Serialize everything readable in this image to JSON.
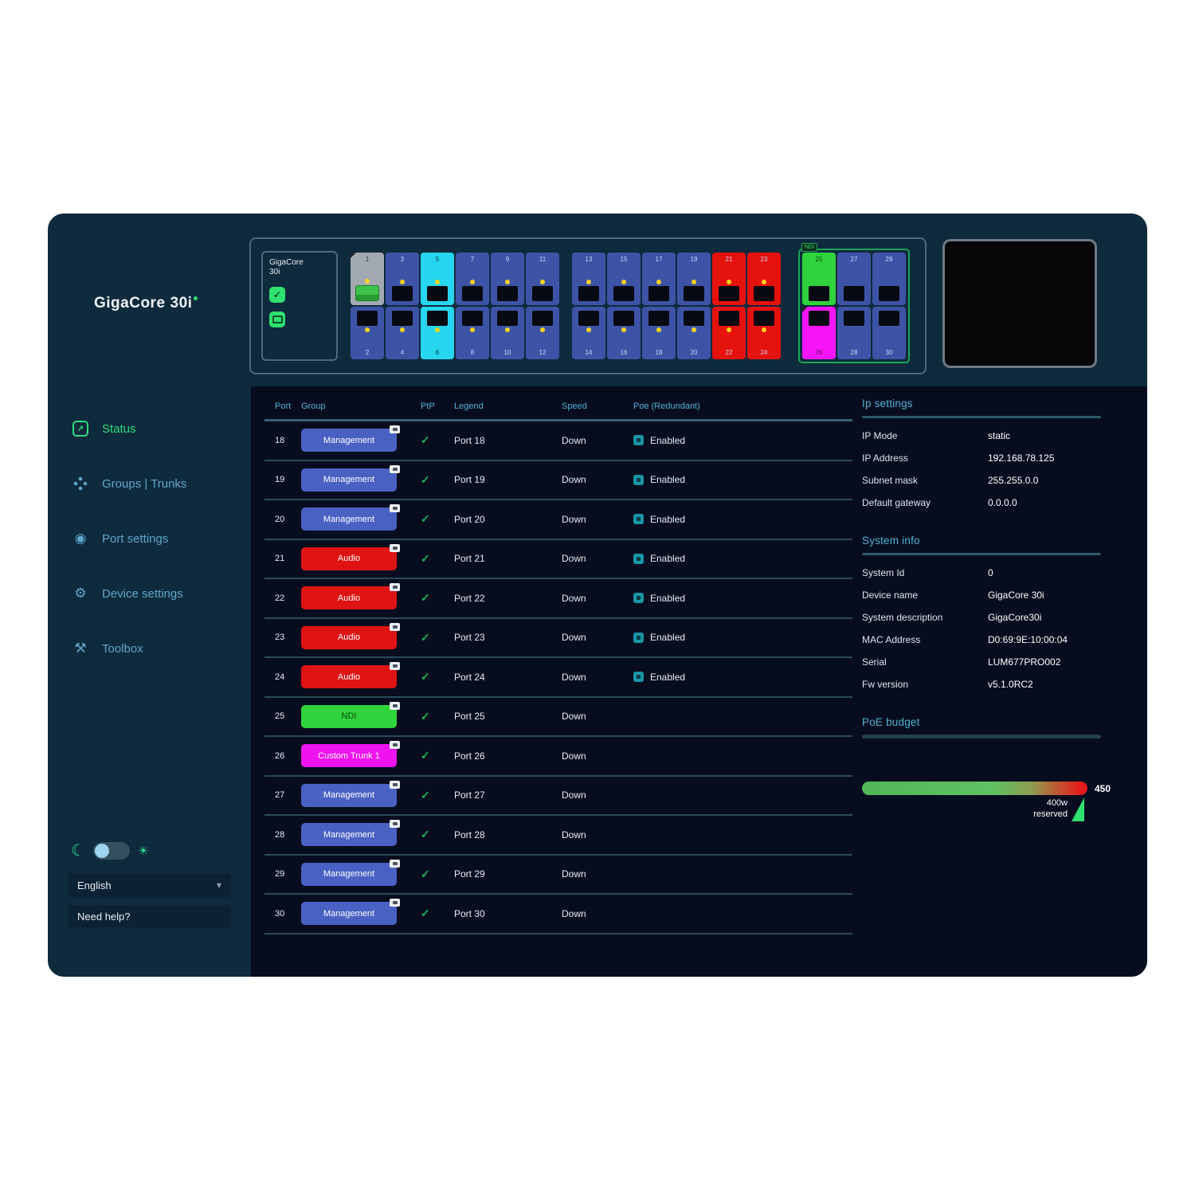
{
  "window": {
    "logo_primary": "GigaCore",
    "logo_secondary": "30i"
  },
  "icons": {
    "check": "✓",
    "moon": "☾",
    "sun": "☀",
    "chevron_down": "▾",
    "status_arrow": "↗",
    "port_settings": "◉",
    "device_settings": "⚙",
    "toolbox": "⚒"
  },
  "device_panel": {
    "info_box": {
      "line1": "GigaCore",
      "line2": "30i"
    },
    "groups": [
      {
        "name": "ports-1-12",
        "outlined": false,
        "tag": "",
        "columns": 6,
        "ports": [
          {
            "n": "1",
            "color": "gray",
            "row": "top",
            "led": true,
            "connector": true,
            "selected": true
          },
          {
            "n": "3",
            "color": "blue",
            "row": "top",
            "led": true
          },
          {
            "n": "5",
            "color": "cyan",
            "row": "top",
            "led": true
          },
          {
            "n": "7",
            "color": "blue",
            "row": "top",
            "led": true
          },
          {
            "n": "9",
            "color": "blue",
            "row": "top",
            "led": true
          },
          {
            "n": "11",
            "color": "blue",
            "row": "top",
            "led": true
          },
          {
            "n": "2",
            "color": "blue",
            "row": "bottom",
            "led": true
          },
          {
            "n": "4",
            "color": "blue",
            "row": "bottom",
            "led": true
          },
          {
            "n": "6",
            "color": "cyan",
            "row": "bottom",
            "led": true
          },
          {
            "n": "8",
            "color": "blue",
            "row": "bottom",
            "led": true
          },
          {
            "n": "10",
            "color": "blue",
            "row": "bottom",
            "led": true
          },
          {
            "n": "12",
            "color": "blue",
            "row": "bottom",
            "led": true
          }
        ]
      },
      {
        "name": "ports-13-24",
        "outlined": false,
        "tag": "",
        "columns": 6,
        "ports": [
          {
            "n": "13",
            "color": "blue",
            "row": "top",
            "led": true
          },
          {
            "n": "15",
            "color": "blue",
            "row": "top",
            "led": true
          },
          {
            "n": "17",
            "color": "blue",
            "row": "top",
            "led": true
          },
          {
            "n": "19",
            "color": "blue",
            "row": "top",
            "led": true
          },
          {
            "n": "21",
            "color": "red",
            "row": "top",
            "led": true
          },
          {
            "n": "23",
            "color": "red",
            "row": "top",
            "led": true
          },
          {
            "n": "14",
            "color": "blue",
            "row": "bottom",
            "led": true
          },
          {
            "n": "16",
            "color": "blue",
            "row": "bottom",
            "led": true
          },
          {
            "n": "18",
            "color": "blue",
            "row": "bottom",
            "led": true
          },
          {
            "n": "20",
            "color": "blue",
            "row": "bottom",
            "led": true
          },
          {
            "n": "22",
            "color": "red",
            "row": "bottom",
            "led": true
          },
          {
            "n": "24",
            "color": "red",
            "row": "bottom",
            "led": true
          }
        ]
      },
      {
        "name": "ports-25-30",
        "outlined": true,
        "tag": "NDI",
        "columns": 3,
        "ports": [
          {
            "n": "25",
            "color": "green",
            "row": "top",
            "led": false
          },
          {
            "n": "27",
            "color": "blue",
            "row": "top",
            "led": false
          },
          {
            "n": "29",
            "color": "blue",
            "row": "top",
            "led": false
          },
          {
            "n": "26",
            "color": "magenta",
            "row": "bottom",
            "led": false,
            "selected": true
          },
          {
            "n": "28",
            "color": "blue",
            "row": "bottom",
            "led": false
          },
          {
            "n": "30",
            "color": "blue",
            "row": "bottom",
            "led": false
          }
        ]
      }
    ]
  },
  "sidebar": {
    "items": [
      {
        "label": "Status",
        "active": true
      },
      {
        "label": "Groups | Trunks",
        "active": false
      },
      {
        "label": "Port settings",
        "active": false
      },
      {
        "label": "Device settings",
        "active": false
      },
      {
        "label": "Toolbox",
        "active": false
      }
    ],
    "language": "English",
    "help": "Need help?"
  },
  "table": {
    "columns": [
      "Port",
      "Group",
      "PtP",
      "Legend",
      "Speed",
      "Poe (Redundant)"
    ],
    "rows": [
      {
        "port": "18",
        "group": "Management",
        "group_color": "management",
        "ptp": true,
        "legend": "Port 18",
        "speed": "Down",
        "poe": "Enabled"
      },
      {
        "port": "19",
        "group": "Management",
        "group_color": "management",
        "ptp": true,
        "legend": "Port 19",
        "speed": "Down",
        "poe": "Enabled"
      },
      {
        "port": "20",
        "group": "Management",
        "group_color": "management",
        "ptp": true,
        "legend": "Port 20",
        "speed": "Down",
        "poe": "Enabled"
      },
      {
        "port": "21",
        "group": "Audio",
        "group_color": "audio",
        "ptp": true,
        "legend": "Port 21",
        "speed": "Down",
        "poe": "Enabled"
      },
      {
        "port": "22",
        "group": "Audio",
        "group_color": "audio",
        "ptp": true,
        "legend": "Port 22",
        "speed": "Down",
        "poe": "Enabled"
      },
      {
        "port": "23",
        "group": "Audio",
        "group_color": "audio",
        "ptp": true,
        "legend": "Port 23",
        "speed": "Down",
        "poe": "Enabled"
      },
      {
        "port": "24",
        "group": "Audio",
        "group_color": "audio",
        "ptp": true,
        "legend": "Port 24",
        "speed": "Down",
        "poe": "Enabled"
      },
      {
        "port": "25",
        "group": "NDI",
        "group_color": "ndi",
        "ptp": true,
        "legend": "Port 25",
        "speed": "Down",
        "poe": ""
      },
      {
        "port": "26",
        "group": "Custom Trunk 1",
        "group_color": "custom",
        "ptp": true,
        "legend": "Port 26",
        "speed": "Down",
        "poe": ""
      },
      {
        "port": "27",
        "group": "Management",
        "group_color": "management",
        "ptp": true,
        "legend": "Port 27",
        "speed": "Down",
        "poe": ""
      },
      {
        "port": "28",
        "group": "Management",
        "group_color": "management",
        "ptp": true,
        "legend": "Port 28",
        "speed": "Down",
        "poe": ""
      },
      {
        "port": "29",
        "group": "Management",
        "group_color": "management",
        "ptp": true,
        "legend": "Port 29",
        "speed": "Down",
        "poe": ""
      },
      {
        "port": "30",
        "group": "Management",
        "group_color": "management",
        "ptp": true,
        "legend": "Port 30",
        "speed": "Down",
        "poe": ""
      }
    ]
  },
  "panels": {
    "ip": {
      "title": "Ip settings",
      "rows": [
        {
          "label": "IP Mode",
          "value": "static"
        },
        {
          "label": "IP Address",
          "value": "192.168.78.125"
        },
        {
          "label": "Subnet mask",
          "value": "255.255.0.0"
        },
        {
          "label": "Default gateway",
          "value": "0.0.0.0"
        }
      ]
    },
    "system": {
      "title": "System info",
      "rows": [
        {
          "label": "System Id",
          "value": "0"
        },
        {
          "label": "Device name",
          "value": "GigaCore 30i"
        },
        {
          "label": "System description",
          "value": "GigaCore30i"
        },
        {
          "label": "MAC Address",
          "value": "D0:69:9E:10:00:04"
        },
        {
          "label": "Serial",
          "value": "LUM677PRO002"
        },
        {
          "label": "Fw version",
          "value": "v5.1.0RC2"
        }
      ]
    },
    "poe": {
      "title": "PoE budget",
      "max": "450",
      "reserved_value": "400w",
      "reserved_word": "reserved"
    }
  },
  "colors": {
    "heading_teal": "#4fb3d4",
    "active_green": "#2ede7e",
    "management_blue": "#4a61c4",
    "audio_red": "#e01313",
    "ndi_green": "#30d33c",
    "custom_trunk_magenta": "#ef13ef",
    "port_cyan": "#25d6ee",
    "led_yellow": "#ffd21f",
    "poe_gradient_start": "#51b857",
    "poe_gradient_end": "#e51c1c"
  }
}
